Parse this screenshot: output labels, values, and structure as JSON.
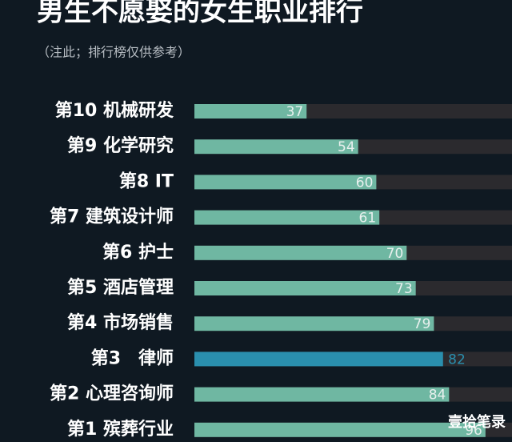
{
  "chart_data": {
    "type": "barh",
    "title": "男生不愿娶的女生职业排行",
    "subtitle": "（注此；排行榜仅供参考）",
    "categories": [
      "第10 机械研发",
      "第9 化学研究",
      "第8 IT",
      "第7 建筑设计师",
      "第6 护士",
      "第5 酒店管理",
      "第4 市场销售",
      "第3　律师",
      "第2 心理咨询师",
      "第1 殡葬行业"
    ],
    "values": [
      37,
      54,
      60,
      61,
      70,
      73,
      79,
      82,
      84,
      96
    ],
    "colors": [
      "#6fb7a2",
      "#6fb7a2",
      "#6fb7a2",
      "#6fb7a2",
      "#6fb7a2",
      "#6fb7a2",
      "#6fb7a2",
      "#2a8fae",
      "#6fb7a2",
      "#6fb7a2"
    ],
    "xlim": [
      0,
      100
    ],
    "watermark": "壹拾笔录"
  }
}
